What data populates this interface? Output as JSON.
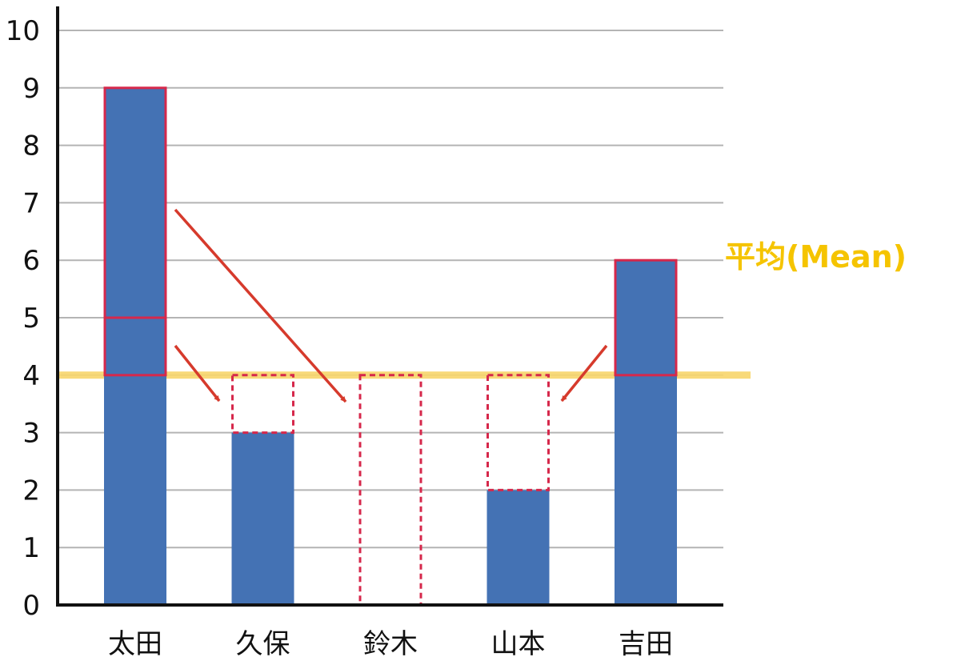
{
  "chart_data": {
    "type": "bar",
    "categories": [
      "太田",
      "久保",
      "鈴木",
      "山本",
      "吉田"
    ],
    "values": [
      9,
      3,
      0,
      2,
      6
    ],
    "ylim": [
      0,
      10
    ],
    "yticks": [
      0,
      1,
      2,
      3,
      4,
      5,
      6,
      7,
      8,
      9,
      10
    ],
    "grid": true,
    "mean": {
      "label": "平均(Mean)",
      "value": 4,
      "color": "#f5c400",
      "line_color": "#f7d56a"
    },
    "excess_segments": [
      {
        "category": "太田",
        "from": 4,
        "to": 9,
        "split_at": 5
      },
      {
        "category": "吉田",
        "from": 4,
        "to": 6
      }
    ],
    "deficit_segments": [
      {
        "category": "久保",
        "from": 3,
        "to": 4
      },
      {
        "category": "鈴木",
        "from": 0,
        "to": 4
      },
      {
        "category": "山本",
        "from": 2,
        "to": 4
      }
    ],
    "arrows": [
      {
        "from_category": "太田",
        "to_category": "鈴木"
      },
      {
        "from_category": "太田",
        "to_category": "久保"
      },
      {
        "from_category": "吉田",
        "to_category": "山本"
      }
    ],
    "colors": {
      "bar": "#4472b4",
      "outline": "#d6284b",
      "arrow": "#d63a2c",
      "grid": "#b4b4b4",
      "axis": "#111111"
    }
  }
}
